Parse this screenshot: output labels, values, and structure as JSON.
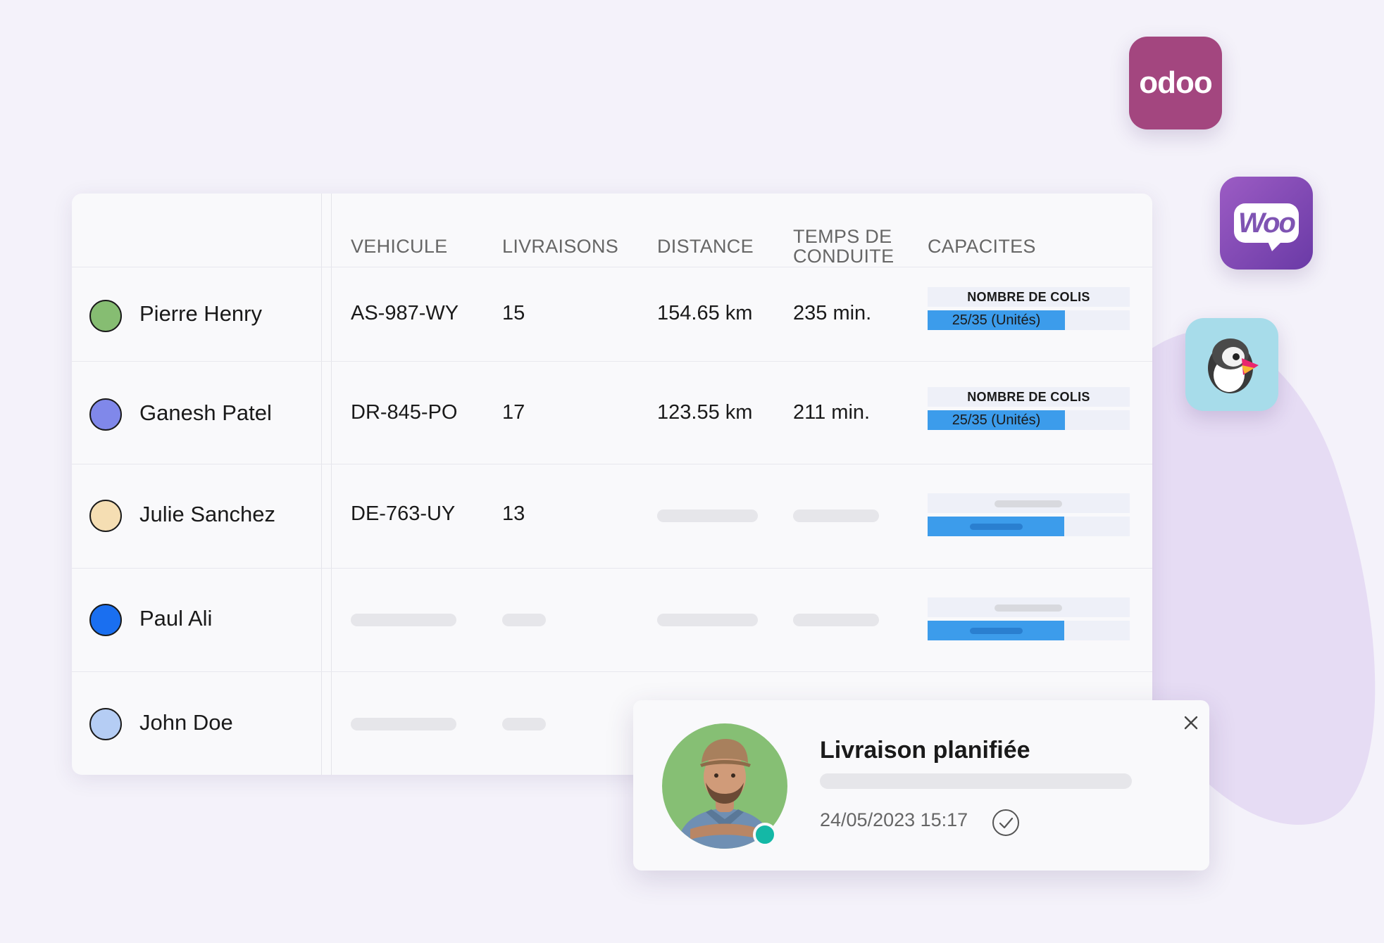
{
  "integrations": {
    "odoo_label": "odoo",
    "woo_label": "Woo",
    "icons": [
      "odoo-logo-icon",
      "woocommerce-logo-icon",
      "prestashop-puffin-icon"
    ]
  },
  "table": {
    "headers": [
      "VEHICULE",
      "LIVRAISONS",
      "DISTANCE",
      "TEMPS DE CONDUITE",
      "CAPACITES"
    ],
    "rows": [
      {
        "name": "Pierre Henry",
        "color": "#86bd72",
        "vehicle": "AS-987-WY",
        "deliveries": "15",
        "distance": "154.65 km",
        "time": "235 min.",
        "capacity_label": "NOMBRE DE COLIS",
        "capacity_value": "25/35 (Unités)",
        "capacity_fraction": 0.714
      },
      {
        "name": "Ganesh Patel",
        "color": "#8088ea",
        "vehicle": "DR-845-PO",
        "deliveries": "17",
        "distance": "123.55 km",
        "time": "211 min.",
        "capacity_label": "NOMBRE DE COLIS",
        "capacity_value": "25/35 (Unités)",
        "capacity_fraction": 0.714
      },
      {
        "name": "Julie Sanchez",
        "color": "#f5deb3",
        "vehicle": "DE-763-UY",
        "deliveries": "13"
      },
      {
        "name": "Paul Ali",
        "color": "#1a6ff0"
      },
      {
        "name": "John Doe",
        "color": "#b5cdf4"
      }
    ]
  },
  "notification": {
    "title": "Livraison planifiée",
    "timestamp": "24/05/2023 15:17",
    "status_color": "#14b8a6"
  }
}
